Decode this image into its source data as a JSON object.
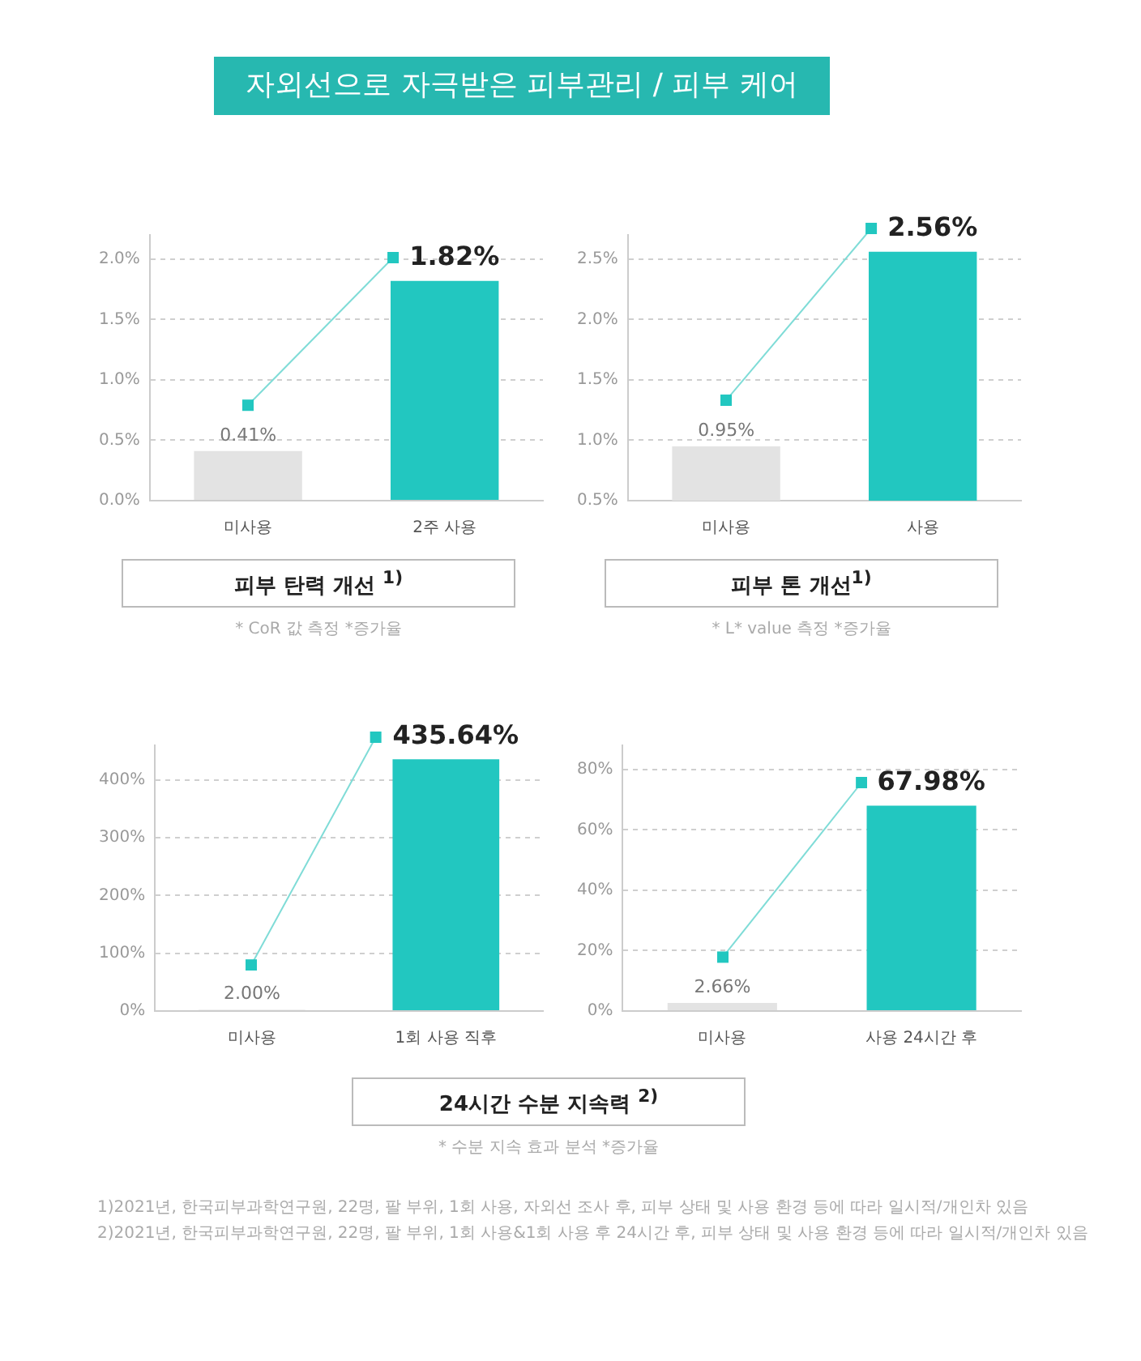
{
  "chart_data": [
    {
      "type": "bar",
      "title": "자외선으로 자극받은 피부관리 / 피부 케어",
      "subtitle": "피부 탄력 개선 $^{1)}$",
      "categories": [
        "미사용",
        "2주 사용"
      ],
      "values": [
        0.41,
        1.82
      ],
      "colors": [
        "#e3e3e3",
        "#22c7c0"
      ],
      "value_labels": [
        "0.41%",
        "1.82%"
      ],
      "ylim": [
        0,
        2.2
      ],
      "yticks": [
        {
          "value": 0,
          "label": "0.0%"
        },
        {
          "value": 0.5,
          "label": "0.5%"
        },
        {
          "value": 1,
          "label": "1.0%"
        },
        {
          "value": 1.5,
          "label": "1.5%"
        },
        {
          "value": 2,
          "label": "2.0%"
        }
      ],
      "grid": "y",
      "annotations": [
        "* CoR 값 측정 *증가율",
        "1)2021년, 한국피부과학연구원, 22명, 팔 부위, 1회 사용, 자외선 조사 후, 피부 상태 및 사용 환경 등에 따라 일시적/개인차 있음"
      ]
    },
    {
      "type": "bar",
      "subtitle": "피부 톤 개선$^{1)}$",
      "categories": [
        "미사용",
        "사용"
      ],
      "values": [
        0.95,
        2.56
      ],
      "colors": [
        "#e3e3e3",
        "#22c7c0"
      ],
      "value_labels": [
        "0.95%",
        "2.56%"
      ],
      "ylim": [
        0.5,
        2.7
      ],
      "yticks": [
        {
          "value": 0.5,
          "label": "0.5%"
        },
        {
          "value": 1,
          "label": "1.0%"
        },
        {
          "value": 1.5,
          "label": "1.5%"
        },
        {
          "value": 2,
          "label": "2.0%"
        },
        {
          "value": 2.5,
          "label": "2.5%"
        }
      ],
      "grid": "y",
      "annotations": [
        "* L* value 측정 *증가율"
      ]
    },
    {
      "type": "bar",
      "subtitle": "24시간 수분 지속력 $^{2)}$",
      "categories": [
        "미사용",
        "1회 사용 직후"
      ],
      "values": [
        2.0,
        435.64
      ],
      "colors": [
        "#e3e3e3",
        "#22c7c0"
      ],
      "value_labels": [
        "2.00%",
        "435.64%"
      ],
      "ylim": [
        0,
        460
      ],
      "yticks": [
        {
          "value": 0,
          "label": "0%"
        },
        {
          "value": 100,
          "label": "100%"
        },
        {
          "value": 200,
          "label": "200%"
        },
        {
          "value": 300,
          "label": "300%"
        },
        {
          "value": 400,
          "label": "400%"
        }
      ],
      "grid": "y",
      "annotations": [
        "* 수분 지속 효과 분석 *증가율",
        "2)2021년, 한국피부과학연구원, 22명, 팔 부위, 1회 사용&1회 사용 후 24시간 후, 피부 상태 및 사용 환경 등에 따라 일시적/개인차 있음"
      ]
    },
    {
      "type": "bar",
      "categories": [
        "미사용",
        "사용 24시간 후"
      ],
      "values": [
        2.66,
        67.98
      ],
      "colors": [
        "#e3e3e3",
        "#22c7c0"
      ],
      "value_labels": [
        "2.66%",
        "67.98%"
      ],
      "ylim": [
        0,
        88
      ],
      "yticks": [
        {
          "value": 0,
          "label": "0%"
        },
        {
          "value": 20,
          "label": "20%"
        },
        {
          "value": 40,
          "label": "40%"
        },
        {
          "value": 60,
          "label": "60%"
        },
        {
          "value": 80,
          "label": "80%"
        }
      ],
      "grid": "y"
    }
  ]
}
